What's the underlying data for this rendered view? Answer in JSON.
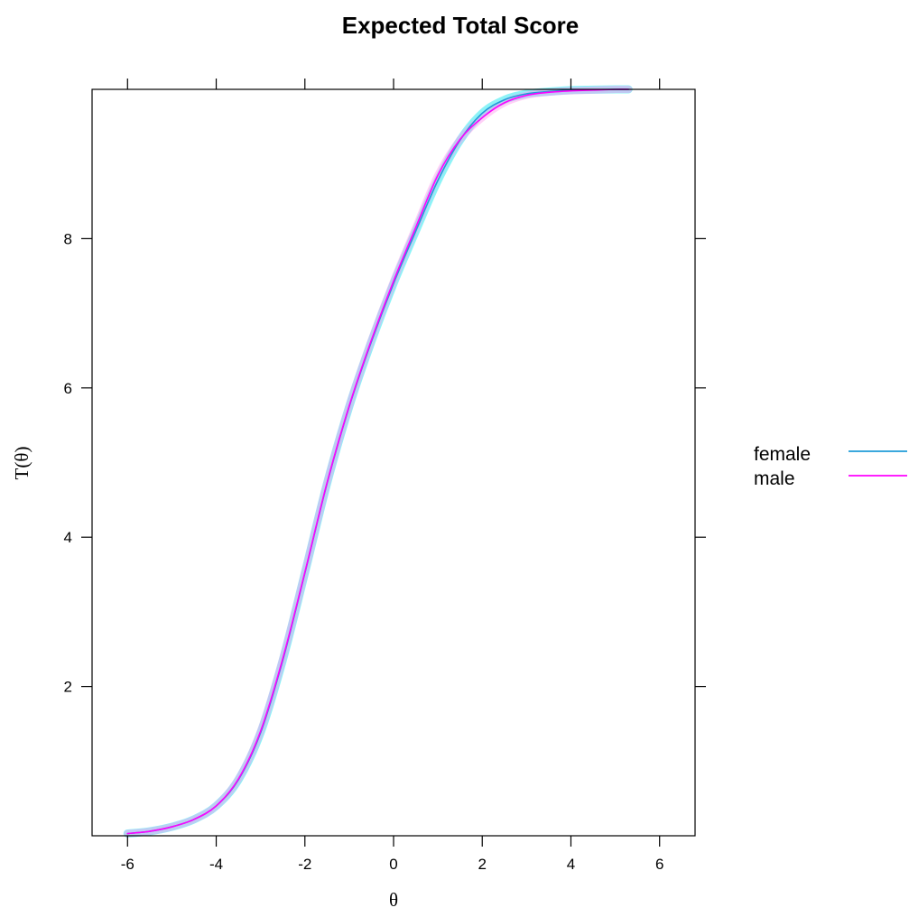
{
  "chart_data": {
    "type": "line",
    "title": "Expected Total Score",
    "xlabel": "θ",
    "ylabel": "T(θ)",
    "xlim": [
      -6.8,
      6.8
    ],
    "ylim": [
      0,
      10
    ],
    "x_ticks": [
      -6,
      -4,
      -2,
      0,
      2,
      4,
      6
    ],
    "y_ticks": [
      2,
      4,
      6,
      8
    ],
    "grid": false,
    "legend_position": "right",
    "series": [
      {
        "name": "female",
        "color": "#1f9bd8",
        "band_color": "#00e5ee",
        "x": [
          -6,
          -5.5,
          -5,
          -4.5,
          -4,
          -3.5,
          -3,
          -2.5,
          -2,
          -1.5,
          -1,
          -0.5,
          0,
          0.5,
          1,
          1.5,
          2,
          2.5,
          3,
          3.5,
          4,
          4.5,
          5,
          5.3
        ],
        "y": [
          0.03,
          0.06,
          0.12,
          0.22,
          0.4,
          0.75,
          1.38,
          2.35,
          3.52,
          4.72,
          5.75,
          6.62,
          7.4,
          8.1,
          8.78,
          9.32,
          9.68,
          9.86,
          9.94,
          9.97,
          9.99,
          9.995,
          10.0,
          10.0
        ]
      },
      {
        "name": "male",
        "color": "#ff00ff",
        "band_color": "#ff99ee",
        "x": [
          -6,
          -5.5,
          -5,
          -4.5,
          -4,
          -3.5,
          -3,
          -2.5,
          -2,
          -1.5,
          -1,
          -0.5,
          0,
          0.5,
          1,
          1.5,
          2,
          2.5,
          3,
          3.5,
          4,
          4.5,
          5,
          5.3
        ],
        "y": [
          0.03,
          0.06,
          0.12,
          0.22,
          0.4,
          0.76,
          1.4,
          2.37,
          3.53,
          4.73,
          5.76,
          6.64,
          7.43,
          8.15,
          8.85,
          9.33,
          9.62,
          9.82,
          9.92,
          9.96,
          9.98,
          9.99,
          10.0,
          10.0
        ]
      }
    ]
  }
}
